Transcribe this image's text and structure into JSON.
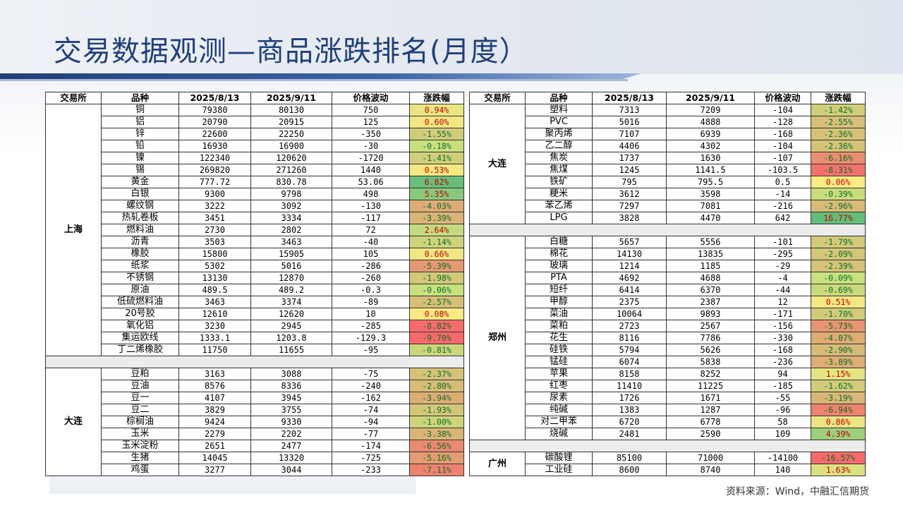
{
  "title": "交易数据观测—商品涨跌排名(月度）",
  "source": "资料来源：Wind，中融汇信期货",
  "headers": [
    "交易所",
    "品种",
    "2025/8/13",
    "2025/9/11",
    "价格波动",
    "涨跌幅"
  ],
  "left_groups": [
    {
      "exchange": "上海",
      "rows": [
        [
          "铜",
          "79380",
          "80130",
          "750",
          "0.94%"
        ],
        [
          "铝",
          "20790",
          "20915",
          "125",
          "0.60%"
        ],
        [
          "锌",
          "22600",
          "22250",
          "-350",
          "-1.55%"
        ],
        [
          "铅",
          "16930",
          "16900",
          "-30",
          "-0.18%"
        ],
        [
          "镍",
          "122340",
          "120620",
          "-1720",
          "-1.41%"
        ],
        [
          "锡",
          "269820",
          "271260",
          "1440",
          "0.53%"
        ],
        [
          "黄金",
          "777.72",
          "830.78",
          "53.06",
          "6.82%"
        ],
        [
          "白银",
          "9300",
          "9798",
          "498",
          "5.35%"
        ],
        [
          "螺纹钢",
          "3222",
          "3092",
          "-130",
          "-4.03%"
        ],
        [
          "热轧卷板",
          "3451",
          "3334",
          "-117",
          "-3.39%"
        ],
        [
          "燃料油",
          "2730",
          "2802",
          "72",
          "2.64%"
        ],
        [
          "沥青",
          "3503",
          "3463",
          "-40",
          "-1.14%"
        ],
        [
          "橡胶",
          "15800",
          "15905",
          "105",
          "0.66%"
        ],
        [
          "纸浆",
          "5302",
          "5016",
          "-286",
          "-5.39%"
        ],
        [
          "不锈钢",
          "13130",
          "12870",
          "-260",
          "-1.98%"
        ],
        [
          "原油",
          "489.5",
          "489.2",
          "-0.3",
          "-0.06%"
        ],
        [
          "低硫燃料油",
          "3463",
          "3374",
          "-89",
          "-2.57%"
        ],
        [
          "20号胶",
          "12610",
          "12620",
          "10",
          "0.08%"
        ],
        [
          "氧化铝",
          "3230",
          "2945",
          "-285",
          "-8.82%"
        ],
        [
          "集运欧线",
          "1333.1",
          "1203.8",
          "-129.3",
          "-9.70%"
        ],
        [
          "丁二烯橡胶",
          "11750",
          "11655",
          "-95",
          "-0.81%"
        ]
      ]
    },
    {
      "exchange": "大连",
      "rows": [
        [
          "豆粕",
          "3163",
          "3088",
          "-75",
          "-2.37%"
        ],
        [
          "豆油",
          "8576",
          "8336",
          "-240",
          "-2.80%"
        ],
        [
          "豆一",
          "4107",
          "3945",
          "-162",
          "-3.94%"
        ],
        [
          "豆二",
          "3829",
          "3755",
          "-74",
          "-1.93%"
        ],
        [
          "棕榈油",
          "9424",
          "9330",
          "-94",
          "-1.00%"
        ],
        [
          "玉米",
          "2279",
          "2202",
          "-77",
          "-3.38%"
        ],
        [
          "玉米淀粉",
          "2651",
          "2477",
          "-174",
          "-6.56%"
        ],
        [
          "生猪",
          "14045",
          "13320",
          "-725",
          "-5.16%"
        ],
        [
          "鸡蛋",
          "3277",
          "3044",
          "-233",
          "-7.11%"
        ]
      ]
    }
  ],
  "right_groups": [
    {
      "exchange": "大连",
      "rows": [
        [
          "塑料",
          "7313",
          "7209",
          "-104",
          "-1.42%"
        ],
        [
          "PVC",
          "5016",
          "4888",
          "-128",
          "-2.55%"
        ],
        [
          "聚丙烯",
          "7107",
          "6939",
          "-168",
          "-2.36%"
        ],
        [
          "乙二醇",
          "4406",
          "4302",
          "-104",
          "-2.36%"
        ],
        [
          "焦炭",
          "1737",
          "1630",
          "-107",
          "-6.16%"
        ],
        [
          "焦煤",
          "1245",
          "1141.5",
          "-103.5",
          "-8.31%"
        ],
        [
          "铁矿",
          "795",
          "795.5",
          "0.5",
          "0.06%"
        ],
        [
          "粳米",
          "3612",
          "3598",
          "-14",
          "-0.39%"
        ],
        [
          "苯乙烯",
          "7297",
          "7081",
          "-216",
          "-2.96%"
        ],
        [
          "LPG",
          "3828",
          "4470",
          "642",
          "16.77%"
        ]
      ]
    },
    {
      "exchange": "郑州",
      "rows": [
        [
          "白糖",
          "5657",
          "5556",
          "-101",
          "-1.79%"
        ],
        [
          "棉花",
          "14130",
          "13835",
          "-295",
          "-2.09%"
        ],
        [
          "玻璃",
          "1214",
          "1185",
          "-29",
          "-2.39%"
        ],
        [
          "PTA",
          "4692",
          "4688",
          "-4",
          "-0.09%"
        ],
        [
          "短纤",
          "6414",
          "6370",
          "-44",
          "-0.69%"
        ],
        [
          "甲醇",
          "2375",
          "2387",
          "12",
          "0.51%"
        ],
        [
          "菜油",
          "10064",
          "9893",
          "-171",
          "-1.70%"
        ],
        [
          "菜粕",
          "2723",
          "2567",
          "-156",
          "-5.73%"
        ],
        [
          "花生",
          "8116",
          "7786",
          "-330",
          "-4.07%"
        ],
        [
          "硅铁",
          "5794",
          "5626",
          "-168",
          "-2.90%"
        ],
        [
          "锰硅",
          "6074",
          "5838",
          "-236",
          "-3.89%"
        ],
        [
          "苹果",
          "8158",
          "8252",
          "94",
          "1.15%"
        ],
        [
          "红枣",
          "11410",
          "11225",
          "-185",
          "-1.62%"
        ],
        [
          "尿素",
          "1726",
          "1671",
          "-55",
          "-3.19%"
        ],
        [
          "纯碱",
          "1383",
          "1287",
          "-96",
          "-6.94%"
        ],
        [
          "对二甲苯",
          "6720",
          "6778",
          "58",
          "0.86%"
        ],
        [
          "烧碱",
          "2481",
          "2590",
          "109",
          "4.39%"
        ]
      ]
    },
    {
      "exchange": "广州",
      "rows": [
        [
          "碳酸锂",
          "85100",
          "71000",
          "-14100",
          "-16.57%"
        ],
        [
          "工业硅",
          "8600",
          "8740",
          "140",
          "1.63%"
        ]
      ]
    }
  ]
}
